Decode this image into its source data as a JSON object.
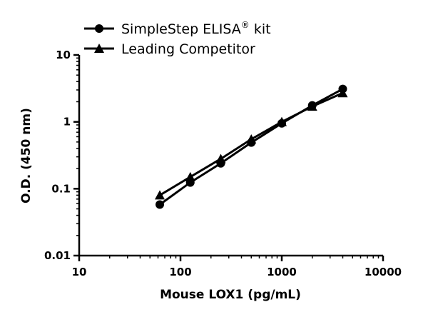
{
  "chart_data": {
    "type": "line",
    "title": "",
    "xlabel": "Mouse LOX1 (pg/mL)",
    "ylabel": "O.D. (450 nm)",
    "xscale": "log",
    "yscale": "log",
    "xlim": [
      10,
      10000
    ],
    "ylim": [
      0.01,
      10
    ],
    "xticks": [
      "10",
      "100",
      "1000",
      "10000"
    ],
    "yticks": [
      "0.01",
      "0.1",
      "1",
      "10"
    ],
    "grid": false,
    "legend_position": "top-left",
    "x": [
      62.5,
      125,
      250,
      500,
      1000,
      2000,
      4000
    ],
    "series": [
      {
        "name": "SimpleStep ELISA",
        "name_superscript": "®",
        "name_suffix": " kit",
        "marker": "circle",
        "color": "#000000",
        "values": [
          0.058,
          0.124,
          0.24,
          0.49,
          0.95,
          1.76,
          3.1
        ]
      },
      {
        "name": "Leading Competitor",
        "marker": "triangle",
        "color": "#000000",
        "values": [
          0.08,
          0.15,
          0.28,
          0.55,
          1.0,
          1.7,
          2.7
        ]
      }
    ]
  }
}
